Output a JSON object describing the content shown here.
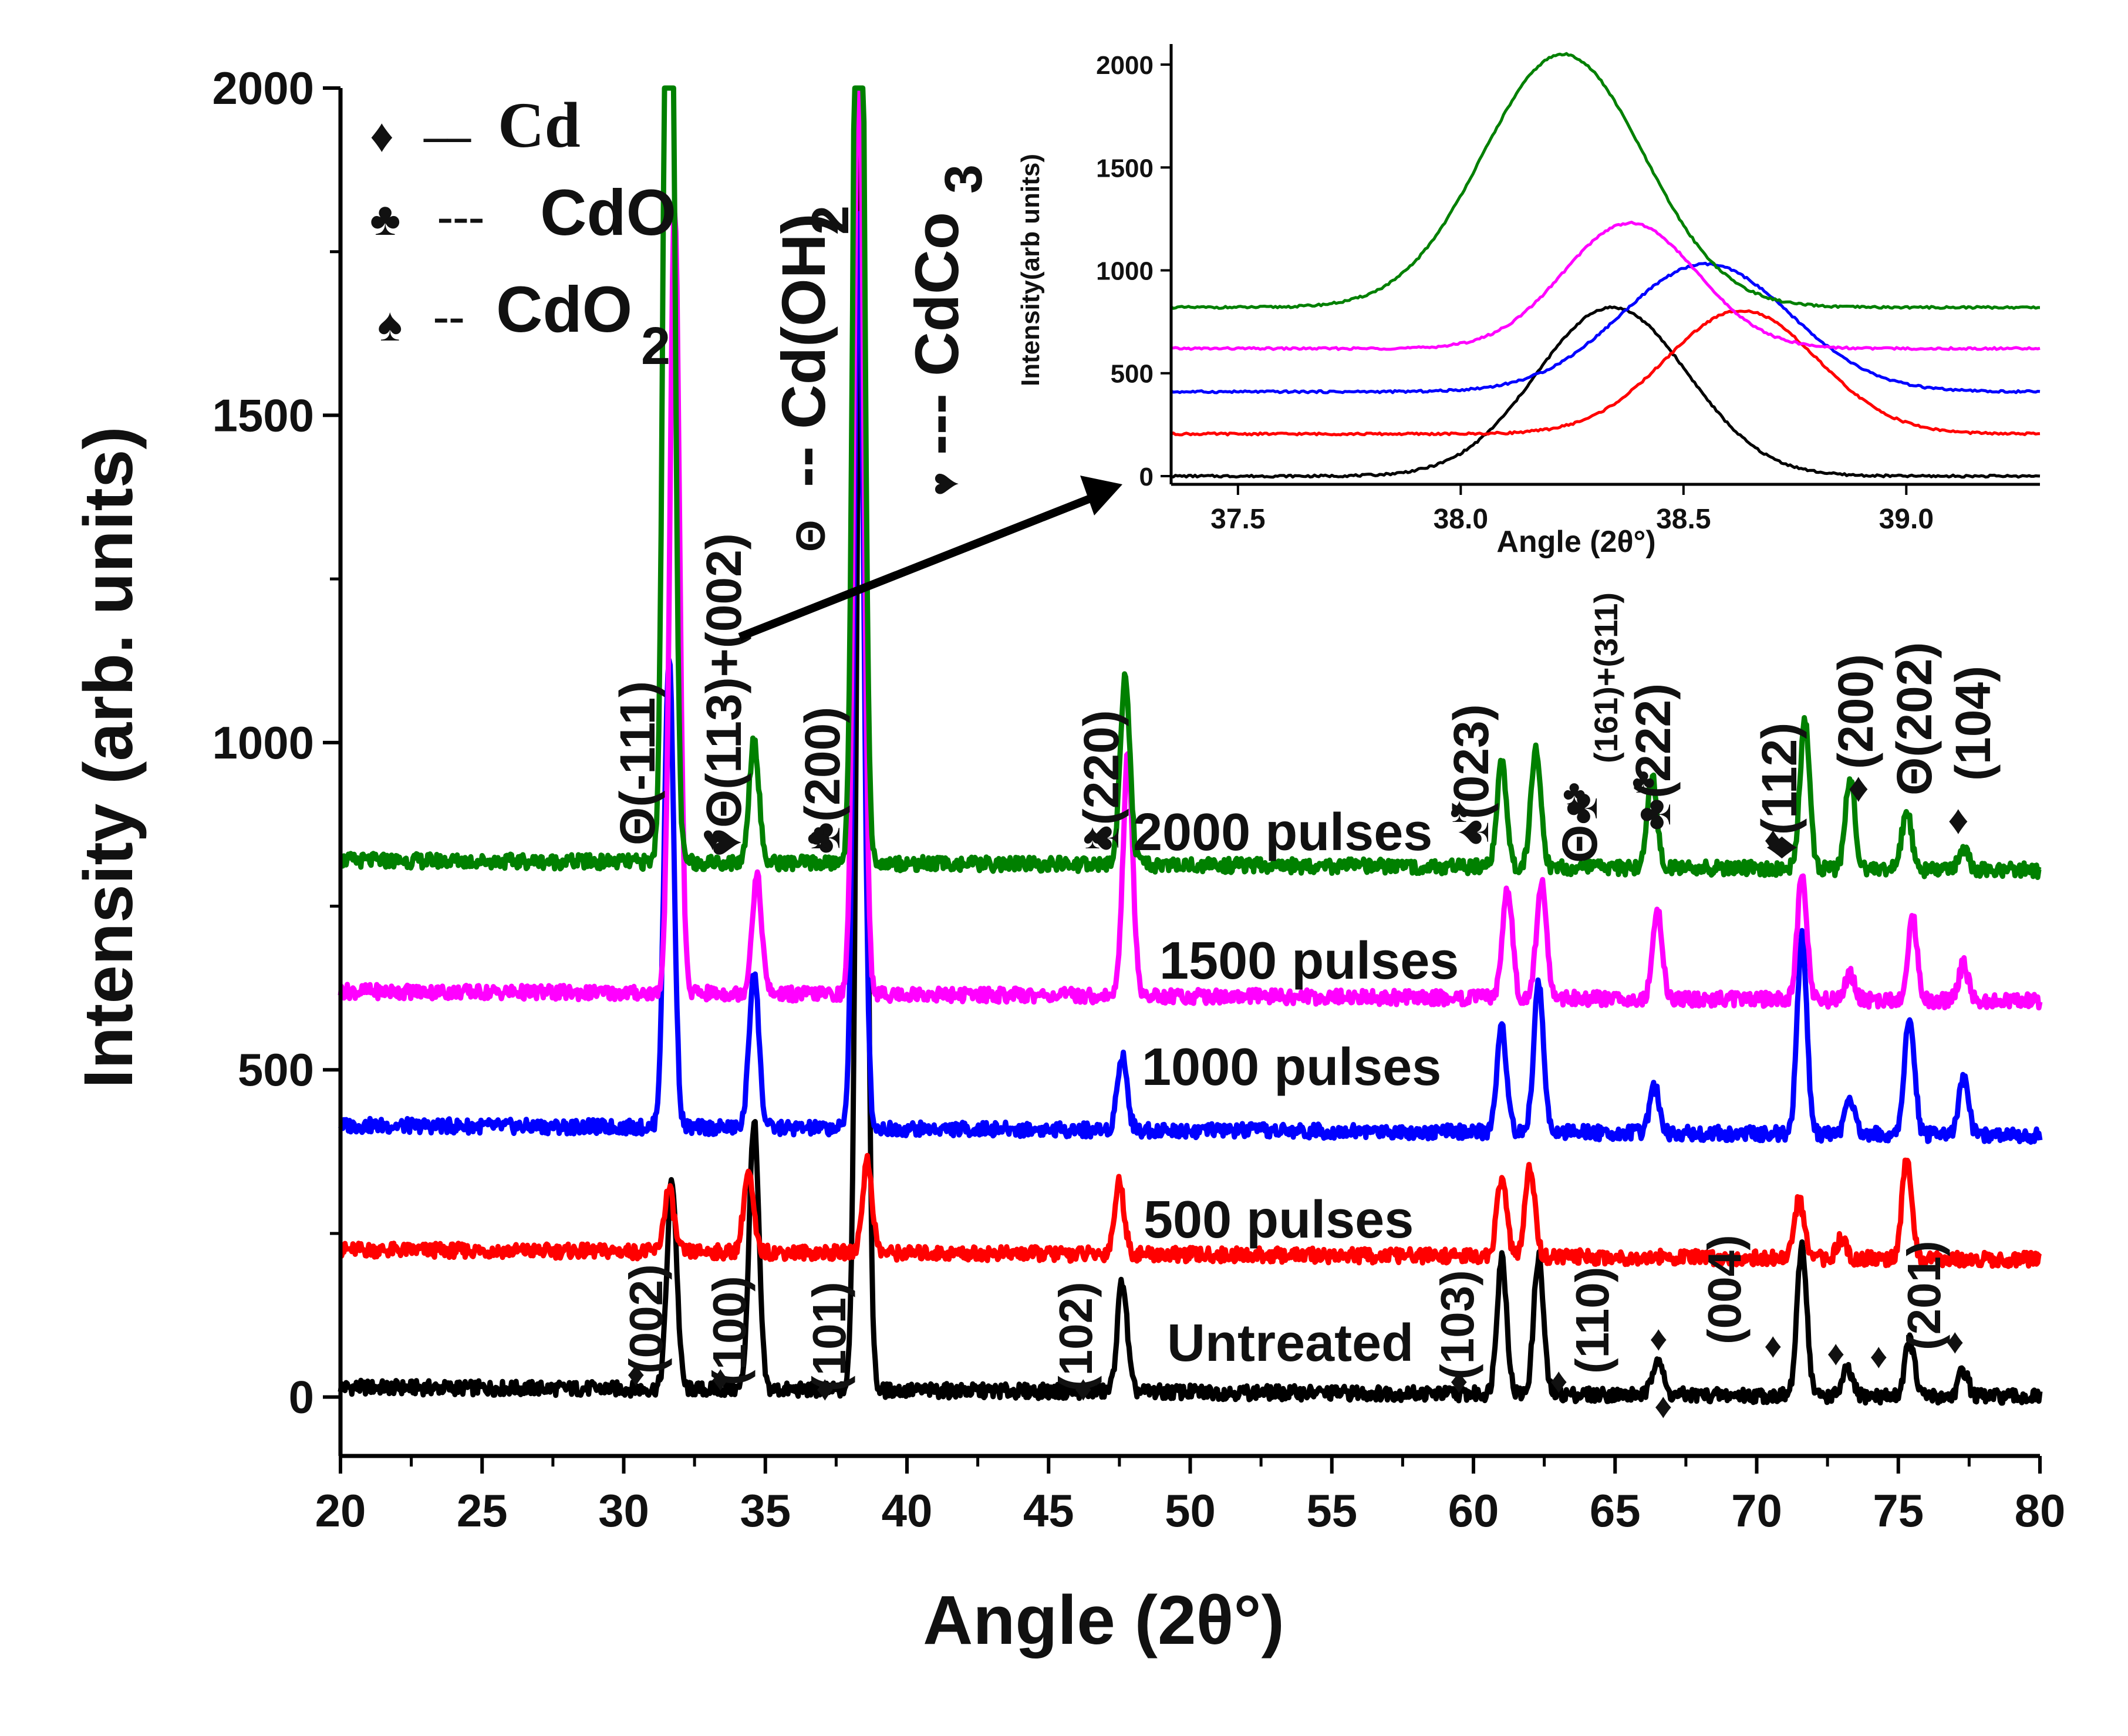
{
  "chart_data": {
    "type": "line",
    "xlabel": "Angle (2θ°)",
    "ylabel": "Intensity (arb. units)",
    "xlim": [
      20,
      80
    ],
    "ylim": [
      -90,
      2000
    ],
    "xticks": [
      20,
      25,
      30,
      35,
      40,
      45,
      50,
      55,
      60,
      65,
      70,
      75,
      80
    ],
    "yticks": [
      0,
      500,
      1000,
      1500,
      2000
    ],
    "series": [
      {
        "name": "Untreated",
        "color": "#000000",
        "baseline": 15,
        "peaks": [
          [
            31.7,
            320
          ],
          [
            34.6,
            410
          ],
          [
            38.4,
            1960
          ],
          [
            47.6,
            170
          ],
          [
            61.0,
            210
          ],
          [
            62.3,
            210
          ],
          [
            66.5,
            60
          ],
          [
            71.6,
            230
          ],
          [
            73.2,
            40
          ],
          [
            75.4,
            85
          ],
          [
            77.3,
            40
          ]
        ]
      },
      {
        "name": "500 pulses",
        "color": "#ff0000",
        "baseline": 225,
        "peaks": [
          [
            31.6,
            95
          ],
          [
            34.4,
            120
          ],
          [
            38.6,
            140
          ],
          [
            47.5,
            110
          ],
          [
            61.0,
            120
          ],
          [
            62.0,
            135
          ],
          [
            71.5,
            90
          ],
          [
            73.0,
            30
          ],
          [
            75.3,
            150
          ]
        ]
      },
      {
        "name": "1000 pulses",
        "color": "#0000ff",
        "baseline": 415,
        "peaks": [
          [
            31.6,
            720
          ],
          [
            34.6,
            240
          ],
          [
            38.3,
            1400
          ],
          [
            47.6,
            115
          ],
          [
            61.0,
            160
          ],
          [
            62.3,
            230
          ],
          [
            66.4,
            70
          ],
          [
            71.6,
            300
          ],
          [
            73.3,
            55
          ],
          [
            75.4,
            185
          ],
          [
            77.3,
            85
          ]
        ]
      },
      {
        "name": "1500 pulses",
        "color": "#ff00ff",
        "baseline": 620,
        "peaks": [
          [
            31.8,
            1200
          ],
          [
            34.7,
            180
          ],
          [
            38.3,
            1500
          ],
          [
            47.8,
            370
          ],
          [
            61.2,
            170
          ],
          [
            62.4,
            180
          ],
          [
            66.5,
            135
          ],
          [
            71.6,
            185
          ],
          [
            73.3,
            40
          ],
          [
            75.5,
            125
          ],
          [
            77.3,
            55
          ]
        ]
      },
      {
        "name": "2000 pulses",
        "color": "#008000",
        "baseline": 820,
        "peaks": [
          [
            31.6,
            1980
          ],
          [
            34.6,
            190
          ],
          [
            38.3,
            1980
          ],
          [
            47.7,
            290
          ],
          [
            61.0,
            160
          ],
          [
            62.2,
            185
          ],
          [
            66.3,
            140
          ],
          [
            71.7,
            230
          ],
          [
            73.3,
            140
          ],
          [
            75.3,
            90
          ],
          [
            77.3,
            30
          ]
        ]
      }
    ],
    "series_labels": [
      "2000 pulses",
      "1500 pulses",
      "1000 pulses",
      "500 pulses",
      "Untreated"
    ],
    "legend": [
      {
        "symbol": "♦",
        "dash": "–– ",
        "text": "Cd"
      },
      {
        "symbol": "♣",
        "dash": "--- ",
        "text": "CdO"
      },
      {
        "symbol": "♠",
        "dash": "-- ",
        "text": "CdO",
        "sub": "2"
      }
    ],
    "vertical_legend": [
      {
        "symbol": "Θ",
        "text": "-- Cd(OH)",
        "sub": "2"
      },
      {
        "symbol": "♥",
        "text": "--- CdCo",
        "sub": "3"
      }
    ],
    "hkl_top": [
      "Θ(-111)",
      "♥Θ(113)+(002)",
      "♣(200)",
      "♠(220)",
      "♠(023)",
      "Θ♣",
      "(161)+(311)",
      "♣(222)",
      "♦(112)",
      "(200)",
      "♦",
      "Θ(202)",
      "(104)",
      "♦"
    ],
    "hkl_bottom": [
      "(002)",
      "(100)",
      "(101)",
      "(102)",
      "(103)",
      "(110)",
      "(004)",
      "(201)"
    ],
    "inset": {
      "xlabel": "Angle (2θ°)",
      "ylabel": "Intensity(arb units)",
      "xlim": [
        37.35,
        39.3
      ],
      "ylim": [
        -40,
        2100
      ],
      "xticks": [
        "37.5",
        "38.0",
        "38.5",
        "39.0"
      ],
      "yticks": [
        0,
        500,
        1000,
        1500,
        2000
      ],
      "series": [
        {
          "name": "Untreated",
          "color": "#000000",
          "baseline": 0,
          "peak": [
            38.34,
            820
          ],
          "width": 0.17
        },
        {
          "name": "500 pulses",
          "color": "#ff0000",
          "baseline": 205,
          "peak": [
            38.63,
            600
          ],
          "width": 0.17
        },
        {
          "name": "1000 pulses",
          "color": "#0000ff",
          "baseline": 410,
          "peak": [
            38.55,
            620
          ],
          "width": 0.19
        },
        {
          "name": "1500 pulses",
          "color": "#ff00ff",
          "baseline": 620,
          "peak": [
            38.38,
            610
          ],
          "width": 0.15
        },
        {
          "name": "2000 pulses",
          "color": "#008000",
          "baseline": 820,
          "peak": [
            38.23,
            1230
          ],
          "width": 0.18
        }
      ]
    }
  }
}
